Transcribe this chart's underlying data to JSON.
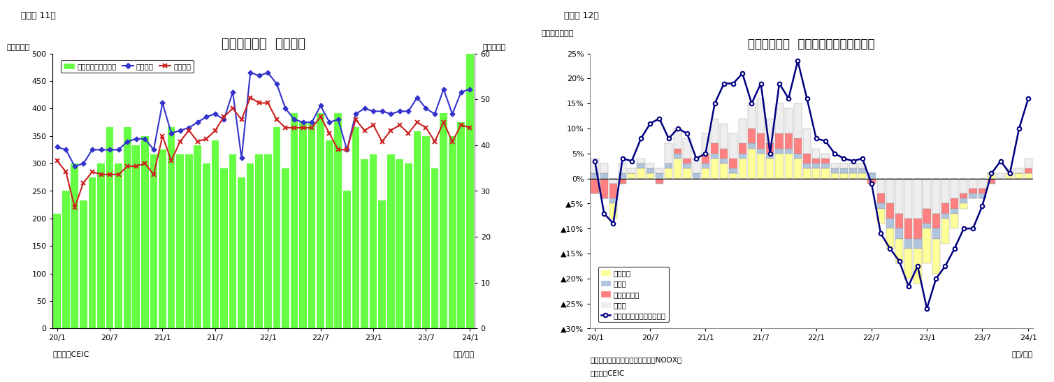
{
  "chart1": {
    "title": "シンガポール  貿易収支",
    "subtitle_left": "（億ドル）",
    "subtitle_right": "（億ドル）",
    "header": "（図表 11）",
    "xlabel": "（年/月）",
    "source": "（資料）CEIC",
    "ylim_left": [
      0,
      500
    ],
    "ylim_right": [
      0,
      60
    ],
    "yticks_left": [
      0,
      50,
      100,
      150,
      200,
      250,
      300,
      350,
      400,
      450,
      500
    ],
    "yticks_right": [
      0,
      10,
      20,
      30,
      40,
      50,
      60
    ],
    "xtick_positions": [
      0,
      6,
      12,
      18,
      24,
      30,
      36,
      42,
      47
    ],
    "xtick_labels": [
      "20/1",
      "20/7",
      "21/1",
      "21/7",
      "22/1",
      "22/7",
      "23/1",
      "23/7",
      "24/1"
    ],
    "trade_balance": [
      25,
      30,
      36,
      28,
      33,
      36,
      44,
      36,
      44,
      40,
      42,
      38,
      39,
      44,
      38,
      38,
      40,
      36,
      41,
      35,
      38,
      33,
      36,
      38,
      38,
      44,
      35,
      47,
      45,
      45,
      47,
      41,
      47,
      30,
      44,
      37,
      38,
      28,
      38,
      37,
      36,
      43,
      42,
      35,
      47,
      42,
      45,
      60
    ],
    "exports": [
      330,
      325,
      295,
      300,
      325,
      325,
      325,
      325,
      340,
      345,
      345,
      325,
      410,
      355,
      360,
      365,
      375,
      385,
      390,
      380,
      430,
      310,
      465,
      460,
      465,
      445,
      400,
      380,
      375,
      375,
      405,
      375,
      380,
      325,
      390,
      400,
      395,
      395,
      390,
      395,
      395,
      420,
      400,
      390,
      435,
      390,
      430,
      435
    ],
    "imports": [
      305,
      285,
      220,
      265,
      285,
      280,
      280,
      280,
      295,
      295,
      300,
      280,
      350,
      305,
      340,
      360,
      340,
      345,
      360,
      385,
      400,
      380,
      420,
      410,
      410,
      380,
      365,
      365,
      365,
      365,
      385,
      355,
      325,
      325,
      380,
      360,
      370,
      340,
      360,
      370,
      355,
      375,
      365,
      340,
      375,
      340,
      370,
      365
    ],
    "bar_color": "#66ff44",
    "export_color": "#3333cc",
    "import_color": "#cc2222",
    "legend_labels": [
      "貿易収支（右目盛）",
      "総輸出額",
      "総輸入額"
    ]
  },
  "chart2": {
    "title": "シンガポール  輸出の伸び率（品目別）",
    "header": "（図表 12）",
    "subtitle_left": "（前年同期比）",
    "xlabel": "（年/月）",
    "note": "（注）輸出額は非石油地場輸出（NODX）",
    "source": "（資料）CEIC",
    "ylim": [
      -0.3,
      0.25
    ],
    "ytick_vals": [
      0.25,
      0.2,
      0.15,
      0.1,
      0.05,
      0.0,
      -0.05,
      -0.1,
      -0.15,
      -0.2,
      -0.25,
      -0.3
    ],
    "ytick_labels": [
      "25%",
      "20%",
      "15%",
      "10%",
      "5%",
      "0%",
      "▲5%",
      "▲10%",
      "▲15%",
      "▲20%",
      "▲25%",
      "▲30%"
    ],
    "xtick_positions": [
      0,
      6,
      12,
      18,
      24,
      30,
      36,
      42,
      47
    ],
    "xtick_labels": [
      "20/1",
      "20/7",
      "21/1",
      "21/7",
      "22/1",
      "22/7",
      "23/1",
      "23/7",
      "24/1"
    ],
    "electronics": [
      0.0,
      0.0,
      -0.03,
      0.0,
      0.01,
      0.02,
      0.01,
      0.0,
      0.02,
      0.04,
      0.02,
      0.0,
      0.02,
      0.04,
      0.03,
      0.01,
      0.04,
      0.06,
      0.05,
      0.04,
      0.05,
      0.05,
      0.04,
      0.02,
      0.02,
      0.02,
      0.01,
      0.01,
      0.01,
      0.01,
      0.0,
      -0.03,
      -0.04,
      -0.05,
      -0.06,
      -0.07,
      -0.07,
      -0.07,
      -0.05,
      -0.03,
      -0.01,
      0.0,
      0.0,
      0.01,
      0.0,
      0.01,
      0.01,
      0.01
    ],
    "pharma": [
      0.01,
      0.01,
      -0.01,
      0.01,
      0.0,
      0.01,
      0.01,
      0.01,
      0.01,
      0.01,
      0.01,
      0.01,
      0.01,
      0.01,
      0.01,
      0.01,
      0.01,
      0.01,
      0.01,
      0.01,
      0.01,
      0.01,
      0.01,
      0.01,
      0.01,
      0.01,
      0.01,
      0.01,
      0.01,
      0.01,
      0.01,
      -0.01,
      -0.02,
      -0.02,
      -0.02,
      -0.02,
      -0.01,
      -0.02,
      -0.01,
      -0.01,
      -0.01,
      -0.01,
      -0.01,
      0.0,
      0.0,
      0.0,
      0.0,
      0.0
    ],
    "petrochem": [
      -0.03,
      -0.04,
      -0.03,
      -0.01,
      0.0,
      0.0,
      0.0,
      -0.01,
      0.0,
      0.01,
      0.01,
      0.0,
      0.02,
      0.02,
      0.02,
      0.02,
      0.02,
      0.03,
      0.03,
      0.02,
      0.03,
      0.03,
      0.03,
      0.02,
      0.01,
      0.01,
      0.0,
      0.0,
      0.0,
      0.0,
      -0.01,
      -0.02,
      -0.03,
      -0.03,
      -0.04,
      -0.04,
      -0.03,
      -0.03,
      -0.02,
      -0.02,
      -0.01,
      -0.01,
      -0.01,
      -0.01,
      0.0,
      0.0,
      0.0,
      0.01
    ],
    "others": [
      0.03,
      0.02,
      -0.01,
      0.02,
      0.01,
      0.01,
      0.01,
      0.01,
      0.04,
      0.04,
      0.04,
      0.03,
      0.04,
      0.05,
      0.05,
      0.05,
      0.05,
      0.05,
      0.07,
      0.05,
      0.06,
      0.05,
      0.07,
      0.05,
      0.02,
      0.01,
      0.01,
      0.01,
      0.01,
      0.01,
      0.0,
      -0.03,
      -0.05,
      -0.07,
      -0.08,
      -0.08,
      -0.06,
      -0.07,
      -0.05,
      -0.04,
      -0.03,
      -0.02,
      -0.02,
      0.0,
      0.01,
      0.01,
      0.01,
      0.02
    ],
    "nodx": [
      0.035,
      -0.07,
      -0.09,
      0.04,
      0.035,
      0.08,
      0.11,
      0.12,
      0.08,
      0.1,
      0.09,
      0.04,
      0.05,
      0.15,
      0.19,
      0.19,
      0.21,
      0.15,
      0.19,
      0.05,
      0.19,
      0.16,
      0.235,
      0.16,
      0.08,
      0.075,
      0.05,
      0.04,
      0.035,
      0.04,
      -0.01,
      -0.11,
      -0.14,
      -0.165,
      -0.215,
      -0.175,
      -0.26,
      -0.2,
      -0.175,
      -0.14,
      -0.1,
      -0.1,
      -0.055,
      0.01,
      0.035,
      0.01,
      0.1,
      0.16
    ],
    "electronics_color": "#ffff99",
    "pharma_color": "#b0c4de",
    "petrochem_color": "#ff8080",
    "others_color": "#eeeeee",
    "nodx_color": "#000080",
    "legend_labels": [
      "電子製品",
      "医薬品",
      "石油化学製品",
      "その他",
      "非石油輸出（再輸出除く）"
    ]
  }
}
